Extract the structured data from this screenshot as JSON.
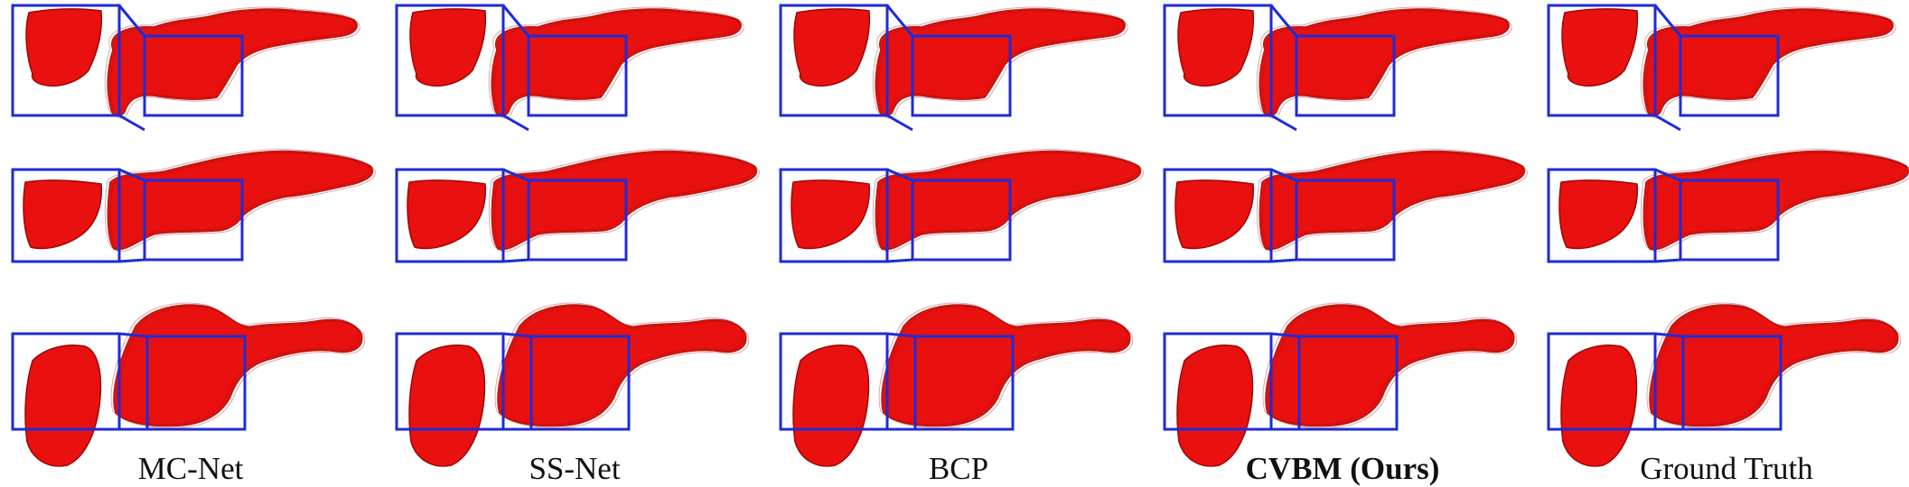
{
  "figure": {
    "columns": [
      {
        "label": "MC-Net",
        "bold": false
      },
      {
        "label": "SS-Net",
        "bold": false
      },
      {
        "label": "BCP",
        "bold": false
      },
      {
        "label": "CVBM (Ours)",
        "bold": true
      },
      {
        "label": "Ground Truth",
        "bold": false
      }
    ],
    "rows": 3
  },
  "colors": {
    "surface": "#e8110f",
    "surface_dark": "#9e0606",
    "surface_light": "#ff4a3a",
    "zoom_box": "#1f2bd6",
    "background": "#ffffff"
  }
}
